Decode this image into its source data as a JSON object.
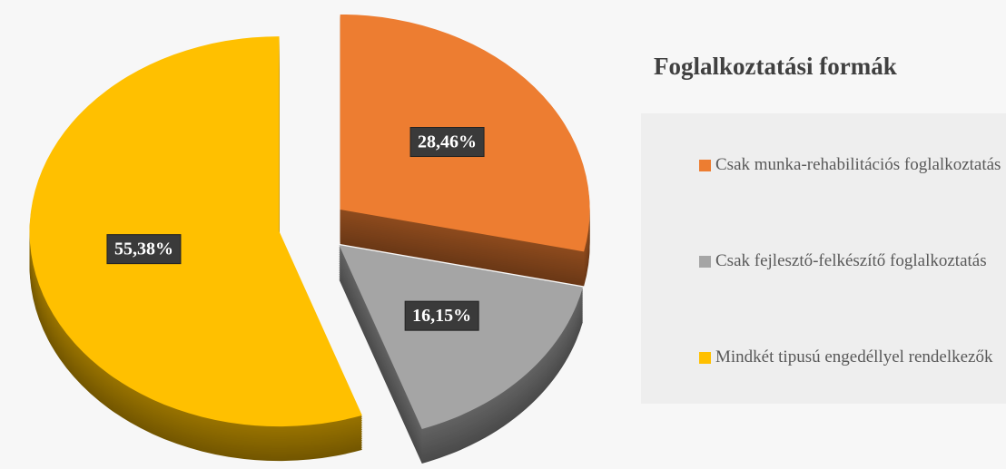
{
  "chart_data": {
    "type": "pie",
    "title": "Foglalkoztatási formák",
    "categories": [
      "Csak munka-rehabilitációs foglalkoztatás",
      "Csak fejlesztő-felkészítő foglalkoztatás",
      "Mindkét tipusú engedéllyel rendelkezők"
    ],
    "values": [
      28.46,
      16.15,
      55.38
    ],
    "value_labels": [
      "28,46%",
      "16,15%",
      "55,38%"
    ],
    "colors": [
      "#ED7D31",
      "#A5A5A5",
      "#FFC000"
    ],
    "legend": "right"
  }
}
